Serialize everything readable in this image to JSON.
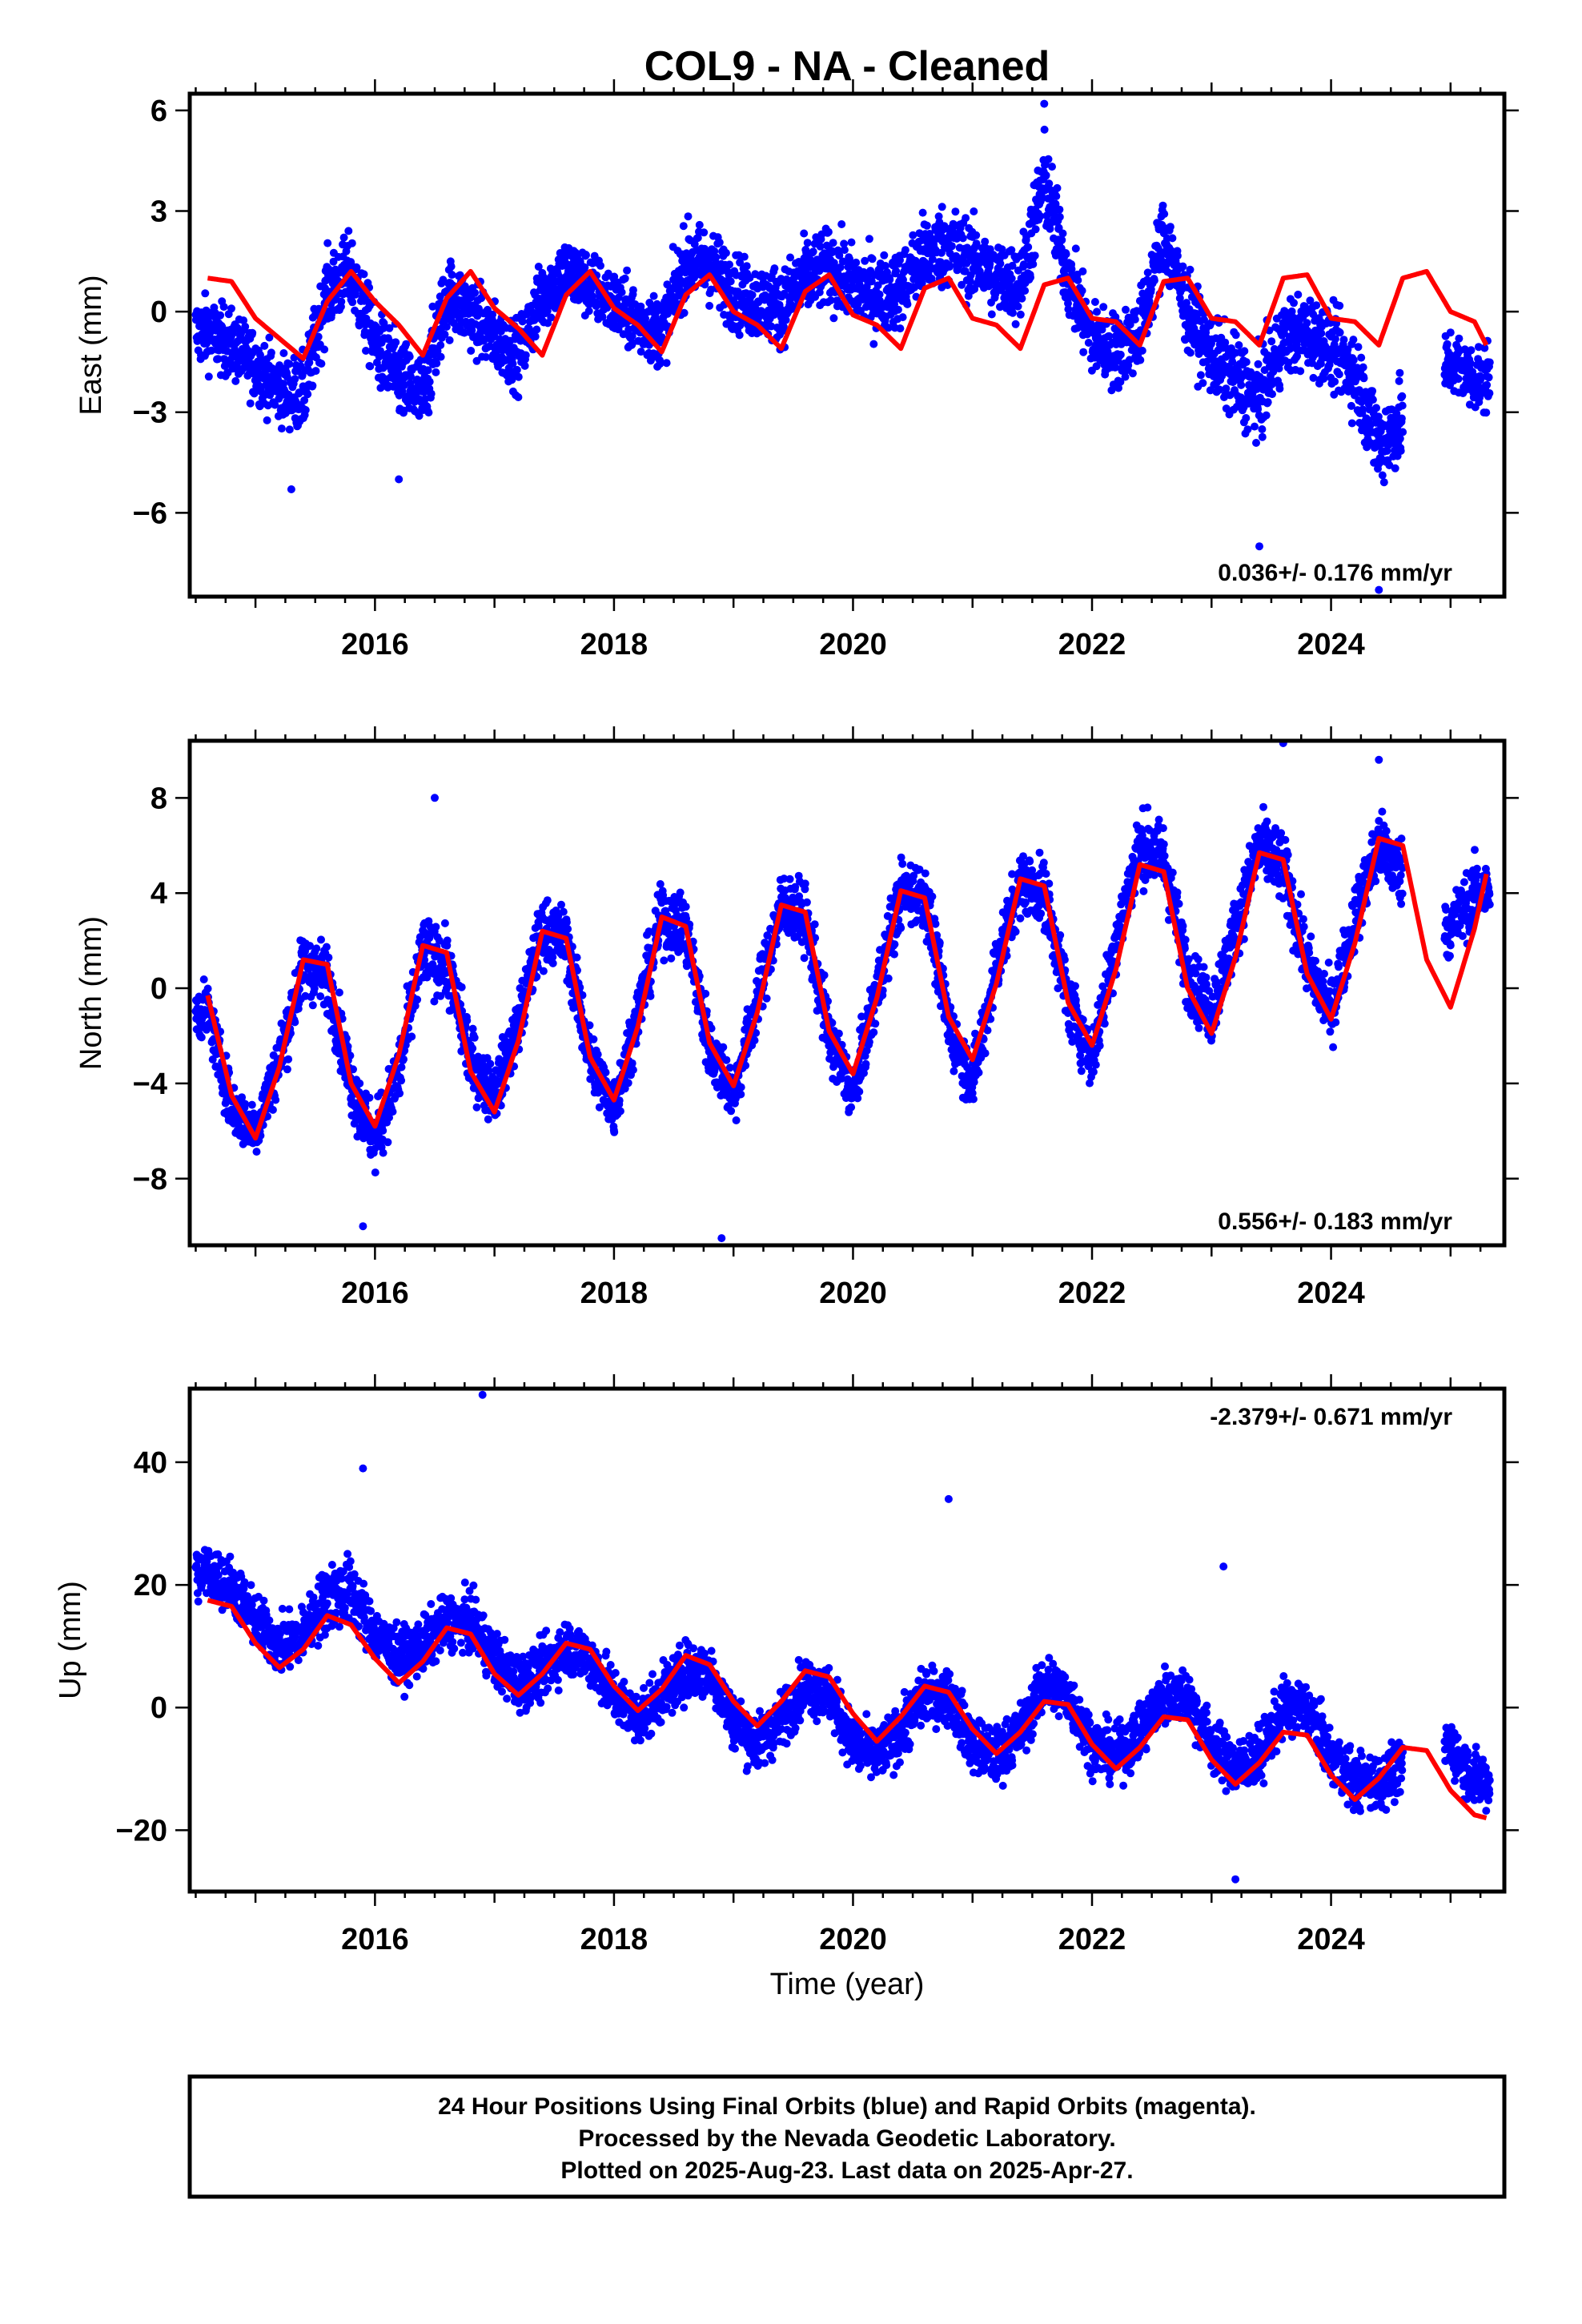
{
  "title": "COL9  - NA - Cleaned",
  "xlabel": "Time (year)",
  "footer": {
    "line1": "24 Hour Positions Using Final Orbits (blue) and Rapid Orbits (magenta).",
    "line2": "Processed by the Nevada Geodetic Laboratory.",
    "line3": "Plotted on 2025-Aug-23. Last data on 2025-Apr-27."
  },
  "colors": {
    "points": "#0000ff",
    "model": "#ff0000",
    "frame": "#000000"
  },
  "chart_data": [
    {
      "type": "scatter",
      "ylabel": "East (mm)",
      "rate": "0.036+/- 0.176 mm/yr",
      "rate_position": "bottom-right",
      "xlim": [
        2014.45,
        2025.45
      ],
      "ylim": [
        -8.5,
        6.5
      ],
      "xticks": [
        2016,
        2018,
        2020,
        2022,
        2024
      ],
      "xtick_labels": [
        "2016",
        "2018",
        "2020",
        "2022",
        "2024"
      ],
      "yticks": [
        -6,
        -3,
        0,
        3,
        6
      ],
      "ytick_labels": [
        "−6",
        "−3",
        "0",
        "3",
        "6"
      ],
      "grid": false,
      "series": [
        {
          "kind": "points",
          "x": [
            2014.6,
            2014.8,
            2015.0,
            2015.2,
            2015.4,
            2015.6,
            2015.8,
            2016.0,
            2016.2,
            2016.4,
            2016.6,
            2016.8,
            2017.0,
            2017.2,
            2017.4,
            2017.6,
            2017.8,
            2018.0,
            2018.2,
            2018.4,
            2018.6,
            2018.8,
            2019.0,
            2019.2,
            2019.4,
            2019.6,
            2019.8,
            2020.0,
            2020.2,
            2020.4,
            2020.6,
            2020.8,
            2021.0,
            2021.2,
            2021.4,
            2021.6,
            2021.8,
            2022.0,
            2022.2,
            2022.4,
            2022.6,
            2022.8,
            2023.0,
            2023.2,
            2023.4,
            2023.6,
            2023.8,
            2024.0,
            2024.2,
            2024.4,
            2025.0,
            2025.2
          ],
          "y": [
            -0.6,
            -1.0,
            -1.6,
            -2.3,
            -2.5,
            0.6,
            1.2,
            -1.0,
            -2.0,
            -2.6,
            0.5,
            0.0,
            -0.8,
            -1.3,
            0.5,
            1.2,
            0.8,
            0.2,
            -0.3,
            -0.6,
            1.5,
            1.4,
            0.6,
            0.3,
            0.2,
            1.0,
            1.3,
            0.8,
            0.5,
            0.7,
            1.7,
            2.0,
            1.5,
            1.0,
            0.8,
            4.0,
            1.0,
            -0.8,
            -1.2,
            -0.6,
            2.3,
            0.0,
            -1.3,
            -2.0,
            -2.6,
            -0.8,
            -0.6,
            -1.1,
            -1.8,
            -4.0,
            -1.5,
            -2.0
          ],
          "spread": [
            0.9,
            0.9,
            0.9,
            0.9,
            1.0,
            1.0,
            1.0,
            1.0,
            1.1,
            1.1,
            1.0,
            1.0,
            0.9,
            0.9,
            0.9,
            0.9,
            0.9,
            0.9,
            0.9,
            0.9,
            1.0,
            1.0,
            1.0,
            1.0,
            1.0,
            1.0,
            1.0,
            1.0,
            1.0,
            1.0,
            1.1,
            1.1,
            1.0,
            1.0,
            1.0,
            1.2,
            1.0,
            1.0,
            1.0,
            1.0,
            1.1,
            1.0,
            1.0,
            1.1,
            1.1,
            1.0,
            1.0,
            1.0,
            1.1,
            1.2,
            0.9,
            0.9
          ],
          "gaps": [
            [
              2024.6,
              2024.95
            ]
          ],
          "outliers_x": [
            2015.3,
            2016.2,
            2021.6,
            2023.4,
            2024.4
          ],
          "outliers_y": [
            -5.3,
            -5.0,
            6.2,
            -7.0,
            -8.3
          ]
        },
        {
          "kind": "model",
          "x": [
            2014.6,
            2014.8,
            2015.0,
            2015.2,
            2015.4,
            2015.6,
            2015.8,
            2016.0,
            2016.2,
            2016.4,
            2016.6,
            2016.8,
            2017.0,
            2017.2,
            2017.4,
            2017.6,
            2017.8,
            2018.0,
            2018.2,
            2018.4,
            2018.6,
            2018.8,
            2019.0,
            2019.2,
            2019.4,
            2019.6,
            2019.8,
            2020.0,
            2020.2,
            2020.4,
            2020.6,
            2020.8,
            2021.0,
            2021.2,
            2021.4,
            2021.6,
            2021.8,
            2022.0,
            2022.2,
            2022.4,
            2022.6,
            2022.8,
            2023.0,
            2023.2,
            2023.4,
            2023.6,
            2023.8,
            2024.0,
            2024.2,
            2024.4,
            2024.6,
            2024.8,
            2025.0,
            2025.2,
            2025.3
          ],
          "y": [
            1.0,
            0.9,
            -0.2,
            -0.8,
            -1.4,
            0.3,
            1.2,
            0.3,
            -0.4,
            -1.3,
            0.4,
            1.2,
            0.1,
            -0.5,
            -1.3,
            0.5,
            1.2,
            0.1,
            -0.4,
            -1.2,
            0.5,
            1.1,
            0.0,
            -0.4,
            -1.1,
            0.6,
            1.1,
            -0.1,
            -0.4,
            -1.1,
            0.7,
            1.0,
            -0.2,
            -0.4,
            -1.1,
            0.8,
            1.0,
            -0.2,
            -0.3,
            -1.0,
            0.9,
            1.0,
            -0.2,
            -0.3,
            -1.0,
            1.0,
            1.1,
            -0.2,
            -0.3,
            -1.0,
            1.0,
            1.2,
            0.0,
            -0.3,
            -1.0
          ]
        }
      ]
    },
    {
      "type": "scatter",
      "ylabel": "North (mm)",
      "rate": "0.556+/- 0.183 mm/yr",
      "rate_position": "bottom-right",
      "xlim": [
        2014.45,
        2025.45
      ],
      "ylim": [
        -10.8,
        10.4
      ],
      "xticks": [
        2016,
        2018,
        2020,
        2022,
        2024
      ],
      "xtick_labels": [
        "2016",
        "2018",
        "2020",
        "2022",
        "2024"
      ],
      "yticks": [
        -8,
        -4,
        0,
        4,
        8
      ],
      "ytick_labels": [
        "−8",
        "−4",
        "0",
        "4",
        "8"
      ],
      "grid": false,
      "series": [
        {
          "kind": "points",
          "x": [
            2014.6,
            2014.8,
            2015.0,
            2015.2,
            2015.4,
            2015.6,
            2015.8,
            2016.0,
            2016.2,
            2016.4,
            2016.6,
            2016.8,
            2017.0,
            2017.2,
            2017.4,
            2017.6,
            2017.8,
            2018.0,
            2018.2,
            2018.4,
            2018.6,
            2018.8,
            2019.0,
            2019.2,
            2019.4,
            2019.6,
            2019.8,
            2020.0,
            2020.2,
            2020.4,
            2020.6,
            2020.8,
            2021.0,
            2021.2,
            2021.4,
            2021.6,
            2021.8,
            2022.0,
            2022.2,
            2022.4,
            2022.6,
            2022.8,
            2023.0,
            2023.2,
            2023.4,
            2023.6,
            2023.8,
            2024.0,
            2024.2,
            2024.4,
            2025.0,
            2025.2
          ],
          "y": [
            -1.0,
            -5.0,
            -6.0,
            -3.0,
            1.0,
            0.5,
            -4.0,
            -6.5,
            -3.5,
            1.5,
            1.0,
            -3.0,
            -4.5,
            -1.5,
            2.5,
            2.0,
            -3.0,
            -5.0,
            -1.0,
            3.0,
            2.5,
            -2.5,
            -4.5,
            -0.5,
            3.5,
            3.0,
            -2.0,
            -4.5,
            0.0,
            4.0,
            4.0,
            -1.5,
            -4.0,
            1.0,
            4.5,
            4.0,
            -0.5,
            -3.0,
            2.0,
            6.0,
            5.5,
            0.5,
            -1.0,
            2.5,
            6.0,
            5.0,
            1.0,
            -1.0,
            3.0,
            6.0,
            2.5,
            4.0
          ],
          "spread": [
            1.0,
            1.0,
            1.0,
            1.1,
            1.2,
            1.2,
            1.2,
            1.2,
            1.2,
            1.3,
            1.2,
            1.2,
            1.1,
            1.1,
            1.2,
            1.2,
            1.2,
            1.1,
            1.1,
            1.2,
            1.2,
            1.2,
            1.1,
            1.1,
            1.2,
            1.2,
            1.2,
            1.1,
            1.2,
            1.2,
            1.2,
            1.2,
            1.1,
            1.2,
            1.2,
            1.2,
            1.2,
            1.1,
            1.2,
            1.3,
            1.3,
            1.2,
            1.2,
            1.2,
            1.3,
            1.3,
            1.2,
            1.2,
            1.2,
            1.3,
            1.2,
            1.2
          ],
          "gaps": [
            [
              2024.6,
              2024.95
            ]
          ],
          "outliers_x": [
            2015.9,
            2016.5,
            2018.9,
            2023.6,
            2024.4
          ],
          "outliers_y": [
            -10.0,
            8.0,
            -10.5,
            10.3,
            9.6
          ]
        },
        {
          "kind": "model",
          "x": [
            2014.6,
            2014.8,
            2015.0,
            2015.2,
            2015.4,
            2015.6,
            2015.8,
            2016.0,
            2016.2,
            2016.4,
            2016.6,
            2016.8,
            2017.0,
            2017.2,
            2017.4,
            2017.6,
            2017.8,
            2018.0,
            2018.2,
            2018.4,
            2018.6,
            2018.8,
            2019.0,
            2019.2,
            2019.4,
            2019.6,
            2019.8,
            2020.0,
            2020.2,
            2020.4,
            2020.6,
            2020.8,
            2021.0,
            2021.2,
            2021.4,
            2021.6,
            2021.8,
            2022.0,
            2022.2,
            2022.4,
            2022.6,
            2022.8,
            2023.0,
            2023.2,
            2023.4,
            2023.6,
            2023.8,
            2024.0,
            2024.2,
            2024.4,
            2024.6,
            2024.8,
            2025.0,
            2025.2,
            2025.3
          ],
          "y": [
            -0.3,
            -4.5,
            -6.3,
            -3.3,
            1.2,
            1.0,
            -4.0,
            -5.8,
            -2.8,
            1.8,
            1.5,
            -3.5,
            -5.2,
            -2.2,
            2.4,
            2.1,
            -2.9,
            -4.7,
            -1.6,
            3.0,
            2.6,
            -2.3,
            -4.1,
            -1.0,
            3.5,
            3.2,
            -1.8,
            -3.6,
            -0.4,
            4.1,
            3.8,
            -1.2,
            -3.0,
            0.2,
            4.6,
            4.3,
            -0.6,
            -2.4,
            0.8,
            5.2,
            4.9,
            0.0,
            -1.9,
            1.3,
            5.7,
            5.4,
            0.6,
            -1.3,
            1.9,
            6.3,
            6.0,
            1.2,
            -0.8,
            2.5,
            4.8
          ]
        }
      ]
    },
    {
      "type": "scatter",
      "ylabel": "Up (mm)",
      "rate": "-2.379+/- 0.671 mm/yr",
      "rate_position": "top-right",
      "xlim": [
        2014.45,
        2025.45
      ],
      "ylim": [
        -30.0,
        52.0
      ],
      "xticks": [
        2016,
        2018,
        2020,
        2022,
        2024
      ],
      "xtick_labels": [
        "2016",
        "2018",
        "2020",
        "2022",
        "2024"
      ],
      "yticks": [
        -20,
        0,
        20,
        40
      ],
      "ytick_labels": [
        "−20",
        "0",
        "20",
        "40"
      ],
      "grid": false,
      "series": [
        {
          "kind": "points",
          "x": [
            2014.6,
            2014.8,
            2015.0,
            2015.2,
            2015.4,
            2015.6,
            2015.8,
            2016.0,
            2016.2,
            2016.4,
            2016.6,
            2016.8,
            2017.0,
            2017.2,
            2017.4,
            2017.6,
            2017.8,
            2018.0,
            2018.2,
            2018.4,
            2018.6,
            2018.8,
            2019.0,
            2019.2,
            2019.4,
            2019.6,
            2019.8,
            2020.0,
            2020.2,
            2020.4,
            2020.6,
            2020.8,
            2021.0,
            2021.2,
            2021.4,
            2021.6,
            2021.8,
            2022.0,
            2022.2,
            2022.4,
            2022.6,
            2022.8,
            2023.0,
            2023.2,
            2023.4,
            2023.6,
            2023.8,
            2024.0,
            2024.2,
            2024.4,
            2025.0,
            2025.2
          ],
          "y": [
            22,
            20,
            14,
            10,
            12,
            18,
            19,
            12,
            8,
            10,
            14,
            14,
            8,
            4,
            6,
            10,
            8,
            2,
            -2,
            2,
            6,
            6,
            -2,
            -6,
            -2,
            4,
            2,
            -6,
            -8,
            -4,
            2,
            2,
            -6,
            -8,
            -4,
            4,
            2,
            -6,
            -8,
            -4,
            2,
            2,
            -6,
            -10,
            -8,
            0,
            0,
            -8,
            -12,
            -12,
            -6,
            -12
          ],
          "spread": [
            4,
            4,
            4,
            4,
            4,
            5,
            5,
            4,
            4,
            4,
            4,
            4,
            4,
            4,
            4,
            4,
            4,
            4,
            4,
            4,
            4,
            4,
            4,
            4,
            4,
            4,
            4,
            4,
            4,
            4,
            4,
            4,
            4,
            4,
            4,
            4,
            4,
            4,
            4,
            4,
            4,
            4,
            4,
            4,
            4,
            4,
            4,
            4,
            4,
            4,
            4,
            4
          ],
          "gaps": [
            [
              2024.6,
              2024.95
            ]
          ],
          "outliers_x": [
            2015.9,
            2016.9,
            2020.8,
            2023.1,
            2023.2
          ],
          "outliers_y": [
            39,
            51,
            34,
            23,
            -28
          ]
        },
        {
          "kind": "model",
          "x": [
            2014.6,
            2014.8,
            2015.0,
            2015.2,
            2015.4,
            2015.6,
            2015.8,
            2016.0,
            2016.2,
            2016.4,
            2016.6,
            2016.8,
            2017.0,
            2017.2,
            2017.4,
            2017.6,
            2017.8,
            2018.0,
            2018.2,
            2018.4,
            2018.6,
            2018.8,
            2019.0,
            2019.2,
            2019.4,
            2019.6,
            2019.8,
            2020.0,
            2020.2,
            2020.4,
            2020.6,
            2020.8,
            2021.0,
            2021.2,
            2021.4,
            2021.6,
            2021.8,
            2022.0,
            2022.2,
            2022.4,
            2022.6,
            2022.8,
            2023.0,
            2023.2,
            2023.4,
            2023.6,
            2023.8,
            2024.0,
            2024.2,
            2024.4,
            2024.6,
            2024.8,
            2025.0,
            2025.2,
            2025.3
          ],
          "y": [
            17.5,
            16.5,
            10.5,
            6.5,
            9.5,
            15.0,
            13.5,
            8.0,
            4.0,
            7.5,
            13.0,
            12.0,
            5.5,
            2.0,
            5.5,
            10.5,
            9.5,
            3.5,
            -0.5,
            3.0,
            8.5,
            7.0,
            1.0,
            -3.0,
            1.0,
            6.0,
            5.0,
            -1.0,
            -5.5,
            -1.5,
            3.5,
            2.5,
            -3.5,
            -7.5,
            -4.0,
            1.0,
            0.5,
            -6.0,
            -10.0,
            -6.5,
            -1.5,
            -2.0,
            -8.5,
            -12.5,
            -9.0,
            -4.0,
            -4.5,
            -11.0,
            -15.0,
            -11.5,
            -6.5,
            -7.0,
            -13.5,
            -17.5,
            -18.0
          ]
        }
      ]
    }
  ]
}
